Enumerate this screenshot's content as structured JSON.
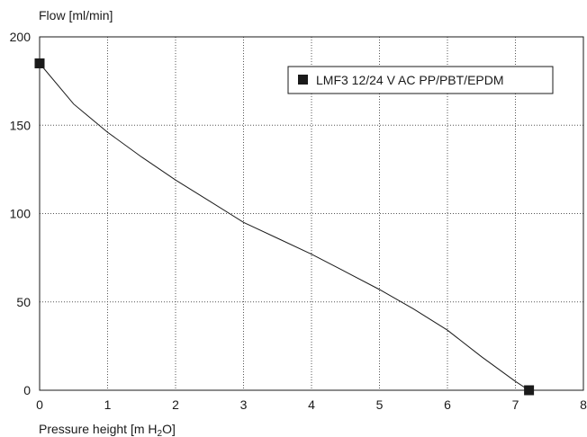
{
  "chart_data": {
    "type": "line",
    "ylabel": "Flow [ml/min]",
    "xlabel_main": "Pressure height [m H",
    "xlabel_sub": "2",
    "xlabel_end": "O]",
    "xlim": [
      0,
      8
    ],
    "ylim": [
      0,
      200
    ],
    "x_ticks": [
      0,
      1,
      2,
      3,
      4,
      5,
      6,
      7,
      8
    ],
    "y_ticks": [
      0,
      50,
      100,
      150,
      200
    ],
    "grid": true,
    "legend_position": "top-right",
    "series": [
      {
        "name": "LMF3 12/24 V AC PP/PBT/EPDM",
        "color": "#1a1a1a",
        "marker": "square",
        "x": [
          0,
          0.5,
          1,
          1.5,
          2,
          2.5,
          3,
          3.5,
          4,
          4.5,
          5,
          5.5,
          6,
          6.5,
          7,
          7.2
        ],
        "y": [
          185,
          162,
          146,
          132,
          119,
          107,
          95,
          86,
          77,
          67,
          57,
          46,
          34,
          19,
          5,
          0
        ]
      }
    ],
    "marker_points": [
      {
        "x": 0,
        "y": 185
      },
      {
        "x": 7.2,
        "y": 0
      }
    ]
  }
}
